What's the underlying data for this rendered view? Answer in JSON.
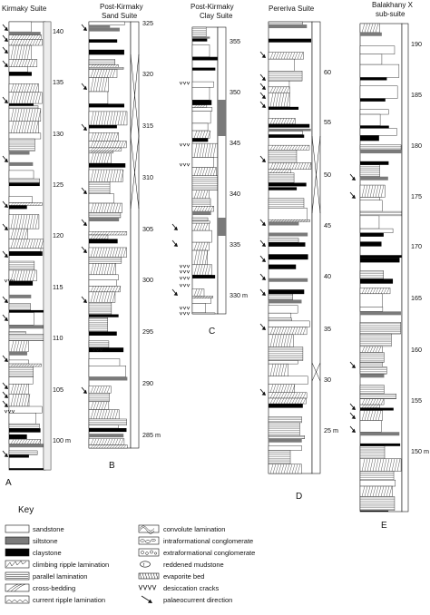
{
  "columns": [
    {
      "id": "A",
      "title_lines": [
        "Kirmaky Suite"
      ],
      "letter": "A",
      "ticks": [
        "140",
        "135",
        "130",
        "125",
        "120",
        "115",
        "110",
        "105",
        "100 m"
      ]
    },
    {
      "id": "B",
      "title_lines": [
        "Post-Kirmaky",
        "Sand Suite"
      ],
      "letter": "B",
      "ticks": [
        "325",
        "320",
        "315",
        "310",
        "305",
        "300",
        "295",
        "290",
        "285 m"
      ]
    },
    {
      "id": "C",
      "title_lines": [
        "Post-Kirmaky",
        "Clay Suite"
      ],
      "letter": "C",
      "ticks": [
        "355",
        "350",
        "345",
        "340",
        "335",
        "330 m"
      ]
    },
    {
      "id": "D",
      "title_lines": [
        "Pereriva Suite"
      ],
      "letter": "D",
      "ticks": [
        "60",
        "55",
        "50",
        "45",
        "40",
        "35",
        "30",
        "25 m"
      ]
    },
    {
      "id": "E",
      "title_lines": [
        "Balakhany X",
        "sub-suite"
      ],
      "letter": "E",
      "ticks": [
        "190",
        "185",
        "180",
        "175",
        "170",
        "165",
        "160",
        "155",
        "150 m"
      ]
    }
  ],
  "key": {
    "title": "Key",
    "left": [
      {
        "symbol": "sandstone",
        "label": "sandstone"
      },
      {
        "symbol": "siltstone",
        "label": "siltstone"
      },
      {
        "symbol": "claystone",
        "label": "claystone"
      },
      {
        "symbol": "climbing-ripple",
        "label": "climbing ripple lamination"
      },
      {
        "symbol": "parallel",
        "label": "parallel lamination"
      },
      {
        "symbol": "cross-bedding",
        "label": "cross-bedding"
      },
      {
        "symbol": "current-ripple",
        "label": "current ripple lamination"
      }
    ],
    "right": [
      {
        "symbol": "convolute",
        "label": "convolute lamination"
      },
      {
        "symbol": "intraformational",
        "label": "intraformational conglomerate"
      },
      {
        "symbol": "extraformational",
        "label": "extraformational conglomerate"
      },
      {
        "symbol": "reddened",
        "label": "reddened mudstone"
      },
      {
        "symbol": "evaporite",
        "label": "evaporite bed"
      },
      {
        "symbol": "desiccation",
        "label": "desiccation cracks"
      },
      {
        "symbol": "palaeocurrent",
        "label": "palaeocurrent direction"
      }
    ]
  },
  "colors": {
    "sandstone": "#ffffff",
    "siltstone": "#7a7a7a",
    "claystone": "#000000",
    "ink": "#111111"
  }
}
